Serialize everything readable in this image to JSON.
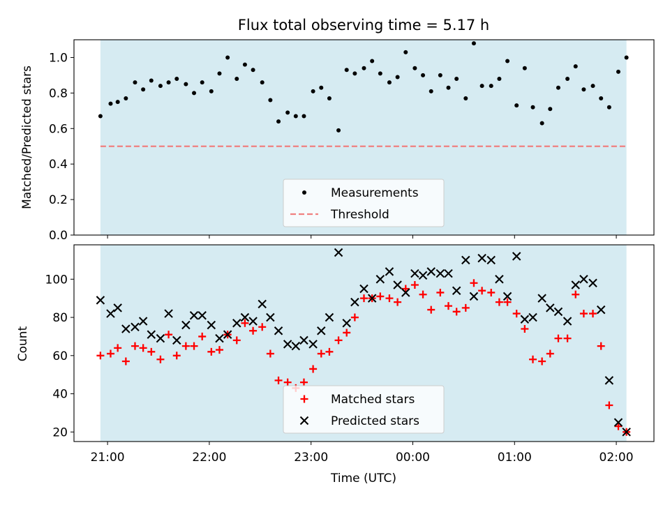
{
  "chart_data": {
    "title": "Flux total observing time = 5.17 h",
    "xlabel": "Time (UTC)",
    "x_tick_labels": [
      "21:00",
      "22:00",
      "23:00",
      "00:00",
      "01:00",
      "02:00"
    ],
    "x_tick_hours": [
      21,
      22,
      23,
      24,
      25,
      26
    ],
    "x_range_hours": [
      20.67,
      26.37
    ],
    "shaded_span_hours": [
      20.93,
      26.1
    ],
    "shade_color": "#add8e6",
    "time_hours": [
      20.93,
      21.03,
      21.1,
      21.18,
      21.27,
      21.35,
      21.43,
      21.52,
      21.6,
      21.68,
      21.77,
      21.85,
      21.93,
      22.02,
      22.1,
      22.18,
      22.27,
      22.35,
      22.43,
      22.52,
      22.6,
      22.68,
      22.77,
      22.85,
      22.93,
      23.02,
      23.1,
      23.18,
      23.27,
      23.35,
      23.43,
      23.52,
      23.6,
      23.68,
      23.77,
      23.85,
      23.93,
      24.02,
      24.1,
      24.18,
      24.27,
      24.35,
      24.43,
      24.52,
      24.6,
      24.68,
      24.77,
      24.85,
      24.93,
      25.02,
      25.1,
      25.18,
      25.27,
      25.35,
      25.43,
      25.52,
      25.6,
      25.68,
      25.77,
      25.85,
      25.93,
      26.02,
      26.1
    ],
    "panels": [
      {
        "ylabel": "Matched/Predicted stars",
        "ylim": [
          0,
          1.1
        ],
        "y_ticks": [
          0.0,
          0.2,
          0.4,
          0.6,
          0.8,
          1.0
        ],
        "y_tick_labels": [
          "0.0",
          "0.2",
          "0.4",
          "0.6",
          "0.8",
          "1.0"
        ],
        "legend_position": "lower center",
        "series": [
          {
            "name": "Measurements",
            "marker": "dot",
            "color": "#000000",
            "values": [
              0.67,
              0.74,
              0.75,
              0.77,
              0.86,
              0.82,
              0.87,
              0.84,
              0.86,
              0.88,
              0.85,
              0.8,
              0.86,
              0.81,
              0.91,
              1.0,
              0.88,
              0.96,
              0.93,
              0.86,
              0.76,
              0.64,
              0.69,
              0.67,
              0.67,
              0.81,
              0.83,
              0.77,
              0.59,
              0.93,
              0.91,
              0.94,
              0.98,
              0.91,
              0.86,
              0.89,
              1.03,
              0.94,
              0.9,
              0.81,
              0.9,
              0.83,
              0.88,
              0.77,
              1.08,
              0.84,
              0.84,
              0.88,
              0.98,
              0.73,
              0.94,
              0.72,
              0.63,
              0.71,
              0.83,
              0.88,
              0.95,
              0.82,
              0.84,
              0.77,
              0.72,
              0.92,
              1.0
            ]
          }
        ],
        "threshold": {
          "name": "Threshold",
          "value": 0.5,
          "color": "#f08080"
        }
      },
      {
        "ylabel": "Count",
        "ylim": [
          15,
          118
        ],
        "y_ticks": [
          20,
          40,
          60,
          80,
          100
        ],
        "y_tick_labels": [
          "20",
          "40",
          "60",
          "80",
          "100"
        ],
        "legend_position": "lower center",
        "series": [
          {
            "name": "Matched stars",
            "marker": "plus",
            "color": "#ff0000",
            "values": [
              60,
              61,
              64,
              57,
              65,
              64,
              62,
              58,
              71,
              60,
              65,
              65,
              70,
              62,
              63,
              71,
              68,
              77,
              73,
              75,
              61,
              47,
              46,
              43,
              46,
              53,
              61,
              62,
              68,
              72,
              80,
              90,
              90,
              91,
              90,
              88,
              95,
              97,
              92,
              84,
              93,
              86,
              83,
              85,
              98,
              94,
              93,
              88,
              88,
              82,
              74,
              58,
              57,
              61,
              69,
              69,
              92,
              82,
              82,
              65,
              34,
              23,
              20
            ]
          },
          {
            "name": "Predicted stars",
            "marker": "x",
            "color": "#000000",
            "values": [
              89,
              82,
              85,
              74,
              75,
              78,
              71,
              69,
              82,
              68,
              76,
              81,
              81,
              76,
              69,
              71,
              77,
              80,
              78,
              87,
              80,
              73,
              66,
              65,
              68,
              66,
              73,
              80,
              114,
              77,
              88,
              95,
              90,
              100,
              104,
              97,
              93,
              103,
              102,
              104,
              103,
              103,
              94,
              110,
              91,
              111,
              110,
              100,
              91,
              112,
              79,
              80,
              90,
              85,
              83,
              78,
              97,
              100,
              98,
              84,
              47,
              25,
              20
            ]
          }
        ]
      }
    ]
  }
}
